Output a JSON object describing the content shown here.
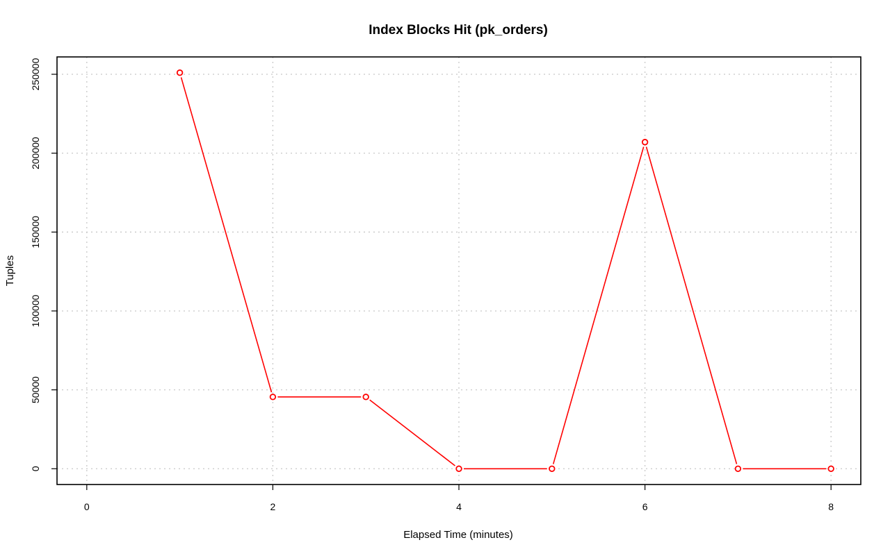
{
  "chart_data": {
    "type": "line",
    "title": "Index Blocks Hit (pk_orders)",
    "xlabel": "Elapsed Time (minutes)",
    "ylabel": "Tuples",
    "x": [
      1,
      2,
      3,
      4,
      5,
      6,
      7,
      8
    ],
    "series": [
      {
        "values": [
          251000,
          45500,
          45500,
          0,
          0,
          207000,
          0,
          0
        ],
        "color": "#ff0000"
      }
    ],
    "xlim": [
      -0.32,
      8.32
    ],
    "ylim": [
      -10000,
      261000
    ],
    "x_ticks": [
      0,
      2,
      4,
      6,
      8
    ],
    "x_tick_labels": [
      "0",
      "2",
      "4",
      "6",
      "8"
    ],
    "y_ticks": [
      0,
      50000,
      100000,
      150000,
      200000,
      250000
    ],
    "y_tick_labels": [
      "0",
      "50000",
      "100000",
      "150000",
      "200000",
      "250000"
    ],
    "grid": true,
    "grid_color": "#c8c8c8",
    "legend": "none"
  }
}
